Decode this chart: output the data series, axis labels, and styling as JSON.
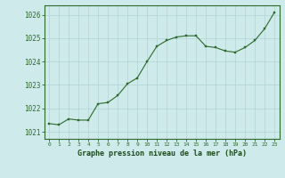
{
  "x": [
    0,
    1,
    2,
    3,
    4,
    5,
    6,
    7,
    8,
    9,
    10,
    11,
    12,
    13,
    14,
    15,
    16,
    17,
    18,
    19,
    20,
    21,
    22,
    23
  ],
  "y": [
    1021.35,
    1021.3,
    1021.55,
    1021.5,
    1021.5,
    1022.2,
    1022.25,
    1022.55,
    1023.05,
    1023.3,
    1024.0,
    1024.65,
    1024.9,
    1025.05,
    1025.1,
    1025.1,
    1024.65,
    1024.6,
    1024.45,
    1024.4,
    1024.6,
    1024.9,
    1025.4,
    1026.1
  ],
  "ylim": [
    1020.7,
    1026.4
  ],
  "yticks": [
    1021,
    1022,
    1023,
    1024,
    1025,
    1026
  ],
  "xticks": [
    0,
    1,
    2,
    3,
    4,
    5,
    6,
    7,
    8,
    9,
    10,
    11,
    12,
    13,
    14,
    15,
    16,
    17,
    18,
    19,
    20,
    21,
    22,
    23
  ],
  "line_color": "#2d6a2d",
  "marker_color": "#2d6a2d",
  "bg_color": "#ceeaea",
  "grid_color": "#b0d4d4",
  "xlabel": "Graphe pression niveau de la mer (hPa)",
  "xlabel_color": "#1a4a1a",
  "tick_label_color": "#2d6a2d",
  "border_color": "#2d6a2d"
}
